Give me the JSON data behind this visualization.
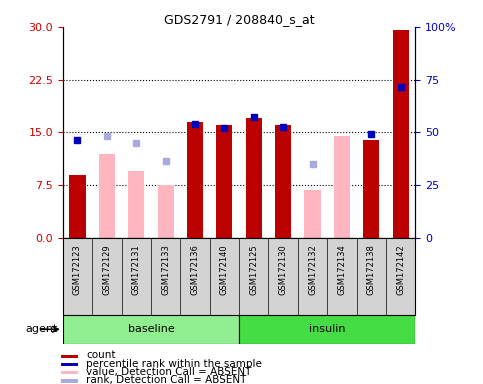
{
  "title": "GDS2791 / 208840_s_at",
  "samples": [
    "GSM172123",
    "GSM172129",
    "GSM172131",
    "GSM172133",
    "GSM172136",
    "GSM172140",
    "GSM172125",
    "GSM172130",
    "GSM172132",
    "GSM172134",
    "GSM172138",
    "GSM172142"
  ],
  "n_baseline": 6,
  "n_insulin": 6,
  "count": [
    9.0,
    null,
    null,
    null,
    16.5,
    16.0,
    17.0,
    16.0,
    null,
    null,
    14.0,
    29.5
  ],
  "percentile_rank_left": [
    14.0,
    null,
    null,
    null,
    16.2,
    15.7,
    17.2,
    15.8,
    null,
    null,
    14.8,
    21.5
  ],
  "value_absent": [
    null,
    12.0,
    9.5,
    7.5,
    null,
    null,
    null,
    null,
    6.8,
    14.5,
    null,
    null
  ],
  "rank_absent": [
    null,
    14.5,
    13.5,
    11.0,
    null,
    null,
    null,
    null,
    10.5,
    null,
    null,
    null
  ],
  "left_yticks": [
    0,
    7.5,
    15.0,
    22.5,
    30
  ],
  "right_yticks": [
    0,
    25,
    50,
    75,
    100
  ],
  "right_ytick_labels": [
    "0",
    "25",
    "50",
    "75",
    "100%"
  ],
  "ylim_left": [
    0,
    30
  ],
  "ylim_right": [
    0,
    100
  ],
  "count_color": "#BB0000",
  "percentile_color": "#0000BB",
  "absent_value_color": "#FFB6C1",
  "absent_rank_color": "#AAAADD",
  "tick_label_color": "#CC0000",
  "right_tick_color": "#0000CC",
  "gray_bg": "#D3D3D3",
  "green_light": "#90EE90",
  "green_dark": "#44DD44",
  "white": "#FFFFFF",
  "legend_items": [
    {
      "label": "count",
      "color": "#BB0000"
    },
    {
      "label": "percentile rank within the sample",
      "color": "#0000BB"
    },
    {
      "label": "value, Detection Call = ABSENT",
      "color": "#FFB6C1"
    },
    {
      "label": "rank, Detection Call = ABSENT",
      "color": "#AAAADD"
    }
  ]
}
